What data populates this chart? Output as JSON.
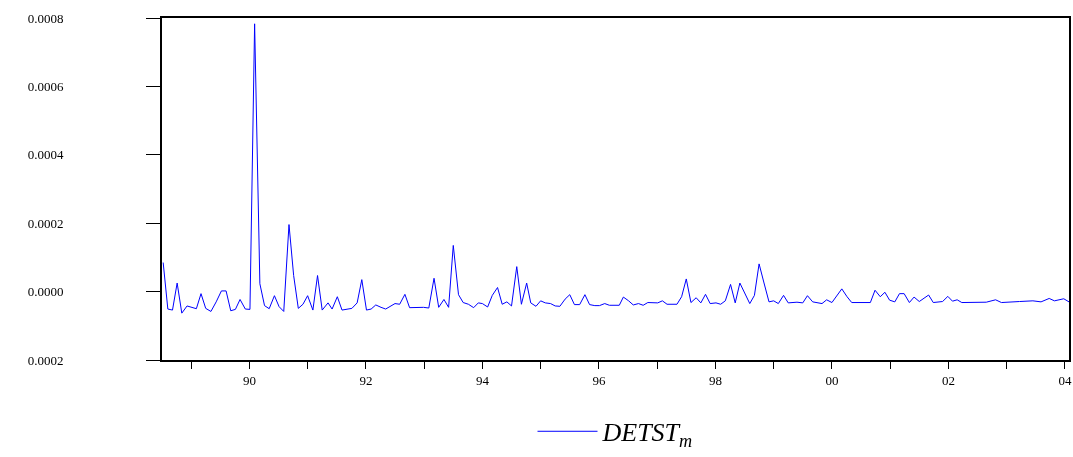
{
  "chart_data": {
    "type": "line",
    "legend": "bottom",
    "marker": "none",
    "line_style": "solid",
    "xlim": [
      1988.5,
      2004.07
    ],
    "xticks": [
      {
        "value": 1989,
        "label": null
      },
      {
        "value": 1990,
        "label": "90"
      },
      {
        "value": 1991,
        "label": null
      },
      {
        "value": 1992,
        "label": "92"
      },
      {
        "value": 1993,
        "label": null
      },
      {
        "value": 1994,
        "label": "94"
      },
      {
        "value": 1995,
        "label": null
      },
      {
        "value": 1996,
        "label": "96"
      },
      {
        "value": 1997,
        "label": null
      },
      {
        "value": 1998,
        "label": "98"
      },
      {
        "value": 1999,
        "label": null
      },
      {
        "value": 2000,
        "label": "00"
      },
      {
        "value": 2001,
        "label": null
      },
      {
        "value": 2002,
        "label": "02"
      },
      {
        "value": 2003,
        "label": null
      },
      {
        "value": 2004,
        "label": "04"
      }
    ],
    "ylim": [
      -0.0002,
      0.0008
    ],
    "yticks": [
      {
        "value": -0.0002,
        "label": "0.0002"
      },
      {
        "value": 0,
        "label": "0.0000"
      },
      {
        "value": 0.0002,
        "label": "0.0002"
      },
      {
        "value": 0.0004,
        "label": "0.0004"
      },
      {
        "value": 0.0006,
        "label": "0.0006"
      },
      {
        "value": 0.0008,
        "label": "0.0008"
      }
    ],
    "x": [
      1988.52,
      1988.6,
      1988.68,
      1988.76,
      1988.84,
      1988.93,
      1989.09,
      1989.17,
      1989.25,
      1989.34,
      1989.43,
      1989.52,
      1989.6,
      1989.68,
      1989.76,
      1989.84,
      1989.93,
      1990.01,
      1990.09,
      1990.18,
      1990.26,
      1990.34,
      1990.43,
      1990.51,
      1990.59,
      1990.68,
      1990.76,
      1990.84,
      1990.92,
      1991.0,
      1991.09,
      1991.17,
      1991.25,
      1991.35,
      1991.42,
      1991.51,
      1991.59,
      1991.76,
      1991.85,
      1991.93,
      1992.01,
      1992.09,
      1992.17,
      1992.26,
      1992.34,
      1992.5,
      1992.58,
      1992.67,
      1992.75,
      1992.99,
      1993.08,
      1993.17,
      1993.25,
      1993.34,
      1993.42,
      1993.5,
      1993.59,
      1993.67,
      1993.76,
      1993.85,
      1993.93,
      1994.0,
      1994.09,
      1994.17,
      1994.26,
      1994.34,
      1994.42,
      1994.5,
      1994.59,
      1994.67,
      1994.76,
      1994.83,
      1994.92,
      1995.0,
      1995.08,
      1995.17,
      1995.25,
      1995.33,
      1995.42,
      1995.5,
      1995.58,
      1995.67,
      1995.76,
      1995.84,
      1995.93,
      1996.01,
      1996.1,
      1996.18,
      1996.35,
      1996.42,
      1996.51,
      1996.59,
      1996.68,
      1996.76,
      1996.84,
      1997.01,
      1997.09,
      1997.17,
      1997.34,
      1997.42,
      1997.5,
      1997.58,
      1997.67,
      1997.75,
      1997.83,
      1997.91,
      1998.01,
      1998.09,
      1998.17,
      1998.26,
      1998.34,
      1998.42,
      1998.59,
      1998.67,
      1998.75,
      1998.83,
      1998.92,
      1999.0,
      1999.08,
      1999.17,
      1999.25,
      1999.4,
      1999.5,
      1999.58,
      1999.67,
      1999.83,
      1999.91,
      2000.0,
      2000.17,
      2000.26,
      2000.34,
      2000.66,
      2000.74,
      2000.83,
      2000.91,
      2000.99,
      2001.08,
      2001.16,
      2001.24,
      2001.33,
      2001.41,
      2001.5,
      2001.66,
      2001.74,
      2001.9,
      2001.99,
      2002.07,
      2002.15,
      2002.23,
      2002.65,
      2002.81,
      2002.91,
      2003.22,
      2003.45,
      2003.59,
      2003.73,
      2003.82,
      2003.98,
      2004.07
    ],
    "series": [
      {
        "name": "DETST$_{m}$",
        "color": "#0000ff",
        "values": [
          8.5e-05,
          -5.1e-05,
          -5.4e-05,
          2.5e-05,
          -6.3e-05,
          -4.2e-05,
          -5e-05,
          -6e-06,
          -4.9e-05,
          -5.8e-05,
          -3e-05,
          2e-06,
          2e-06,
          -5.6e-05,
          -5.2e-05,
          -2.3e-05,
          -5.1e-05,
          -5.2e-05,
          0.000783,
          2.3e-05,
          -4.1e-05,
          -5e-05,
          -1.2e-05,
          -4.4e-05,
          -5.8e-05,
          0.000196,
          4.7e-05,
          -4.9e-05,
          -3.7e-05,
          -1.2e-05,
          -5.4e-05,
          4.7e-05,
          -5.4e-05,
          -3.3e-05,
          -5.1e-05,
          -1.5e-05,
          -5.4e-05,
          -4.9e-05,
          -3.3e-05,
          3.5e-05,
          -5.4e-05,
          -5.1e-05,
          -3.9e-05,
          -4.6e-05,
          -5.1e-05,
          -3.5e-05,
          -3.7e-05,
          -8e-06,
          -4.7e-05,
          -4.6e-05,
          -4.8e-05,
          3.9e-05,
          -4.6e-05,
          -2.3e-05,
          -4.6e-05,
          0.000135,
          -9e-06,
          -3.2e-05,
          -3.7e-05,
          -4.7e-05,
          -3.3e-05,
          -3.5e-05,
          -4.5e-05,
          -1.1e-05,
          1.2e-05,
          -3.7e-05,
          -3e-05,
          -4.2e-05,
          7.3e-05,
          -3.7e-05,
          2.5e-05,
          -3.3e-05,
          -4.3e-05,
          -2.7e-05,
          -3.3e-05,
          -3.5e-05,
          -4.2e-05,
          -4.3e-05,
          -2.2e-05,
          -9e-06,
          -3.8e-05,
          -3.8e-05,
          -9e-06,
          -3.8e-05,
          -4.1e-05,
          -4.1e-05,
          -3.5e-05,
          -4e-05,
          -4e-05,
          -1.6e-05,
          -2.7e-05,
          -3.9e-05,
          -3.5e-05,
          -4e-05,
          -3.2e-05,
          -3.3e-05,
          -2.7e-05,
          -3.7e-05,
          -3.7e-05,
          -1.5e-05,
          3.7e-05,
          -3.2e-05,
          -1.8e-05,
          -3.3e-05,
          -8e-06,
          -3.5e-05,
          -3.3e-05,
          -3.7e-05,
          -2.7e-05,
          2.1e-05,
          -3.3e-05,
          2.5e-05,
          -3.5e-05,
          -1.1e-05,
          8.1e-05,
          2.8e-05,
          -3e-05,
          -2.7e-05,
          -3.5e-05,
          -1.1e-05,
          -3.3e-05,
          -3.1e-05,
          -3.3e-05,
          -1.2e-05,
          -3e-05,
          -3.5e-05,
          -2.4e-05,
          -3.2e-05,
          8e-06,
          -1.5e-05,
          -3.2e-05,
          -3.2e-05,
          4e-06,
          -1.5e-05,
          -2e-06,
          -2.5e-05,
          -3e-05,
          -6e-06,
          -6e-06,
          -3.2e-05,
          -1.6e-05,
          -2.9e-05,
          -1e-05,
          -3.2e-05,
          -2.9e-05,
          -1.4e-05,
          -2.8e-05,
          -2.4e-05,
          -3.2e-05,
          -3.1e-05,
          -2.4e-05,
          -3.2e-05,
          -2.9e-05,
          -2.7e-05,
          -3e-05,
          -2e-05,
          -2.7e-05,
          -2.1e-05,
          -3e-05
        ]
      }
    ]
  }
}
